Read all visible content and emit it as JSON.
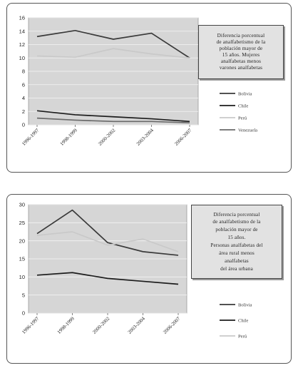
{
  "chart_data": [
    {
      "type": "line",
      "title": "Diferencia porcentual\nde analfabetismo de la\npoblación mayor de\n15 años. Mujeres\nanalfabetas menos\nvarones analfabetas",
      "categories": [
        "1996-1997",
        "1998-1999",
        "2000-2002",
        "2003-2004",
        "2006-2007"
      ],
      "ylim": [
        0,
        16
      ],
      "yticks": [
        "0",
        "2",
        "4",
        "6",
        "8",
        "10",
        "12",
        "14",
        "16"
      ],
      "grid": true,
      "legend_position": "right",
      "series": [
        {
          "name": "Bolivia",
          "values": [
            13.2,
            14.1,
            12.8,
            13.7,
            10.0
          ],
          "color": "#3a3a3a"
        },
        {
          "name": "Chile",
          "values": [
            2.1,
            1.5,
            1.2,
            0.9,
            0.5
          ],
          "color": "#1c1c1c"
        },
        {
          "name": "Perú",
          "values": [
            10.3,
            10.1,
            11.4,
            10.6,
            10.0
          ],
          "color": "#c9c9c9"
        },
        {
          "name": "Venezuela",
          "values": [
            1.0,
            0.7,
            0.5,
            0.5,
            0.3
          ],
          "color": "#6a6a6a"
        }
      ]
    },
    {
      "type": "line",
      "title": "Diferencia porcentual\nde analfabetismo de la\npoblación mayor de\n15 años.\nPersonas analfabetas del\nárea rural menos\nanalfabetas\ndel área urbana",
      "categories": [
        "1996-1997",
        "1998-1999",
        "2000-2002",
        "2003-2004",
        "2006-2007"
      ],
      "ylim": [
        0,
        30
      ],
      "yticks": [
        "0",
        "5",
        "10",
        "15",
        "20",
        "25",
        "30"
      ],
      "grid": true,
      "legend_position": "right",
      "series": [
        {
          "name": "Bolivia",
          "values": [
            22.0,
            28.5,
            19.5,
            17.0,
            16.0
          ],
          "color": "#3a3a3a"
        },
        {
          "name": "Chile",
          "values": [
            10.5,
            11.2,
            9.6,
            8.8,
            8.0
          ],
          "color": "#1c1c1c"
        },
        {
          "name": "Perú",
          "values": [
            21.5,
            22.5,
            18.8,
            20.5,
            17.0
          ],
          "color": "#c9c9c9"
        }
      ]
    }
  ]
}
